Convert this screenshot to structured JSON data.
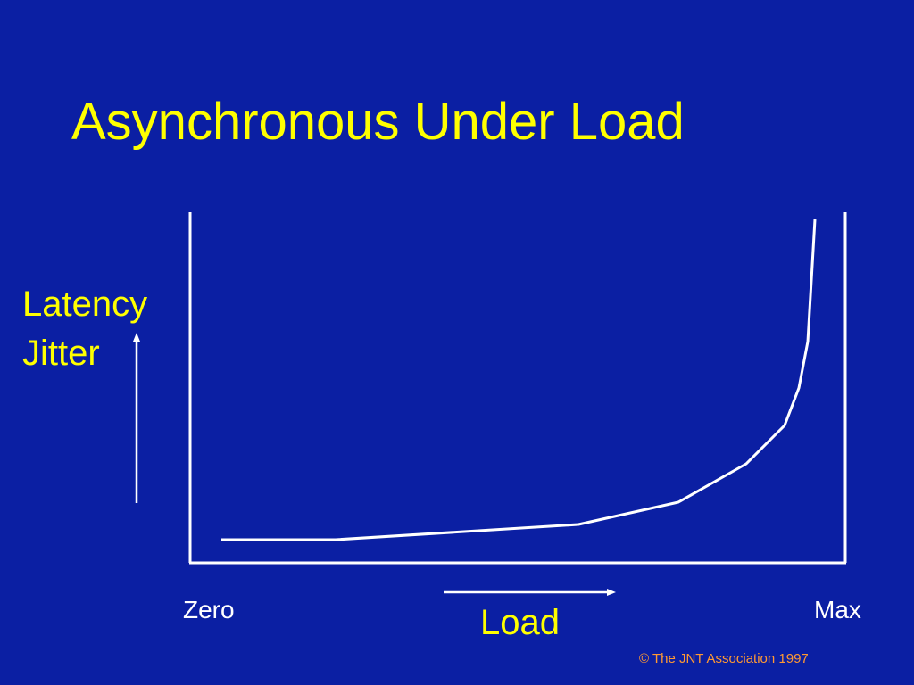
{
  "header": {
    "title": "Asynchronous Under Load"
  },
  "axes": {
    "y_label_lines": [
      "Latency",
      "Jitter"
    ],
    "x_start": "Zero",
    "x_end": "Max",
    "x_label": "Load"
  },
  "footer": {
    "copyright": "© The JNT Association 1997"
  }
}
